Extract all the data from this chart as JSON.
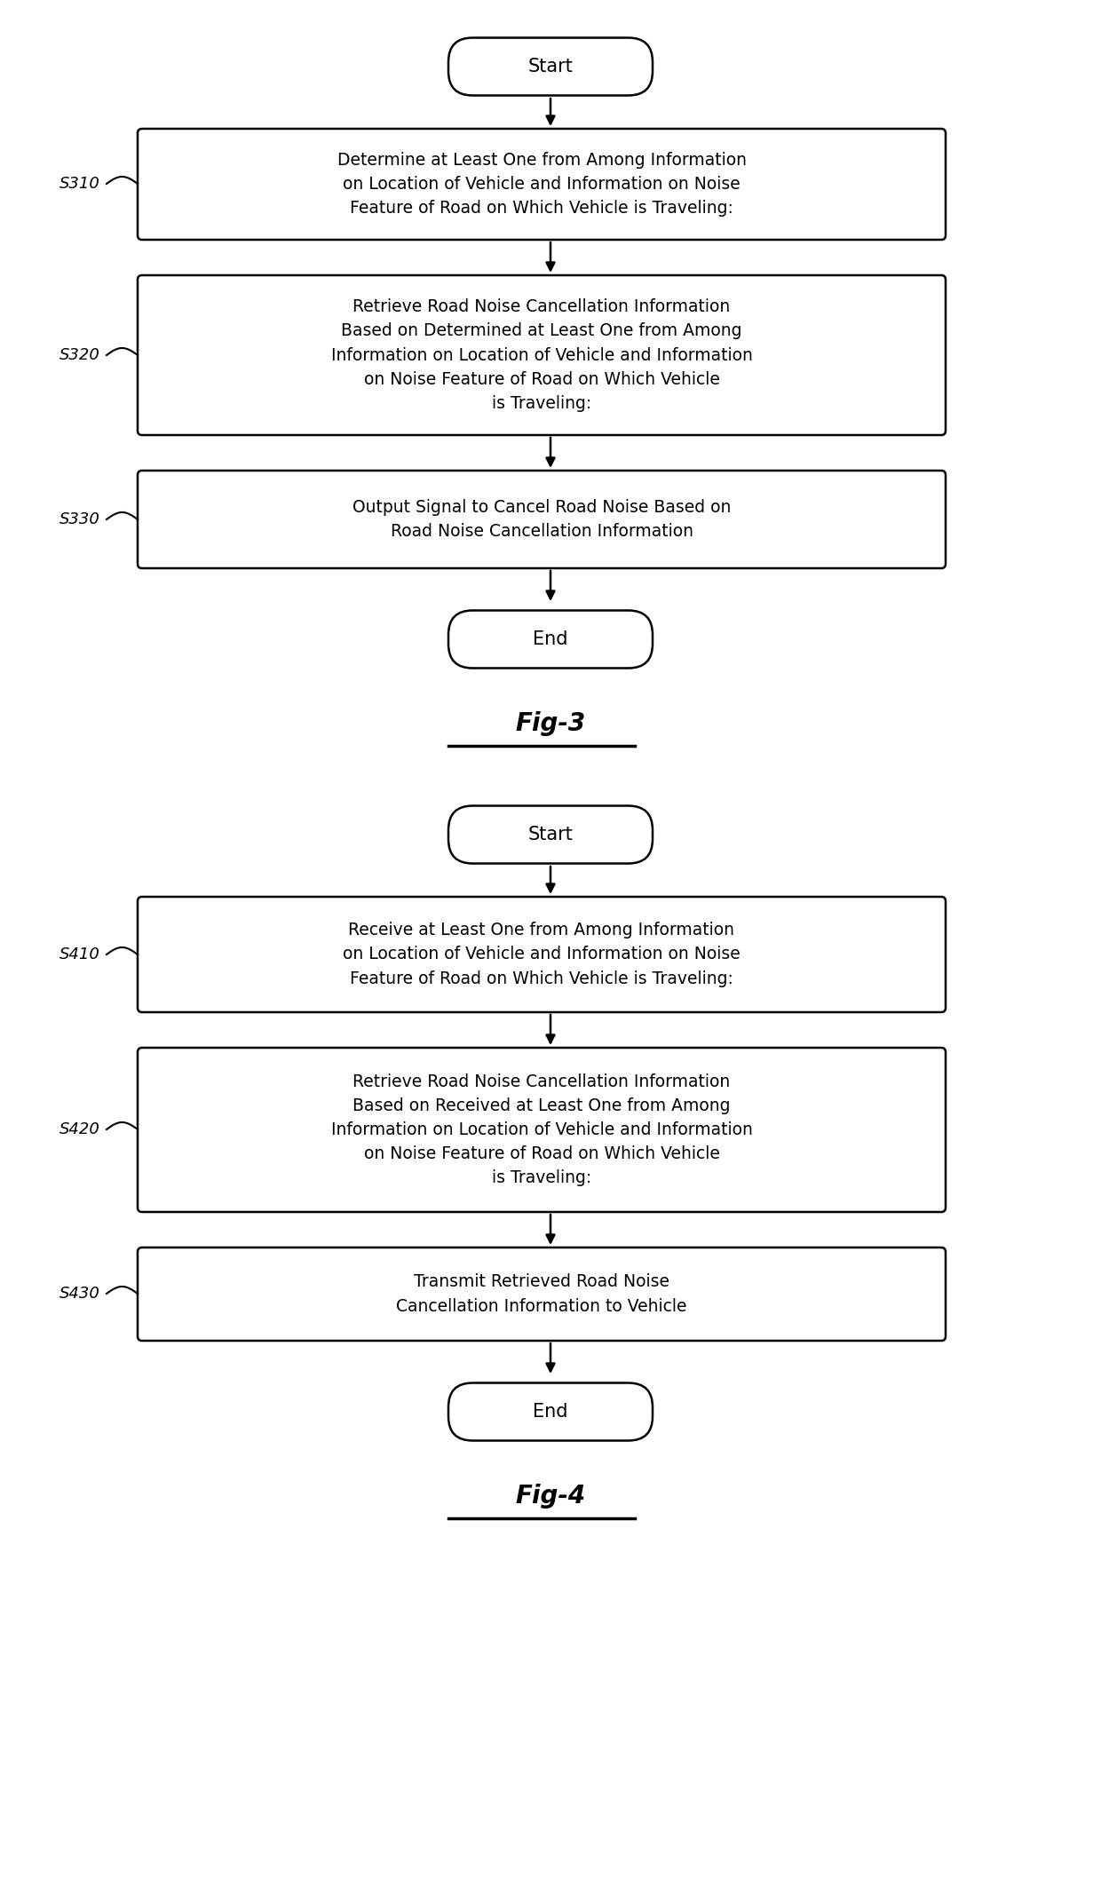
{
  "bg_color": "#ffffff",
  "fig3": {
    "title": "Fig-3",
    "start_label": "Start",
    "end_label": "End",
    "steps": [
      {
        "label": "S310",
        "text": "Determine at Least One from Among Information\non Location of Vehicle and Information on Noise\nFeature of Road on Which Vehicle is Traveling:"
      },
      {
        "label": "S320",
        "text": "Retrieve Road Noise Cancellation Information\nBased on Determined at Least One from Among\nInformation on Location of Vehicle and Information\non Noise Feature of Road on Which Vehicle\nis Traveling:"
      },
      {
        "label": "S330",
        "text": "Output Signal to Cancel Road Noise Based on\nRoad Noise Cancellation Information"
      }
    ]
  },
  "fig4": {
    "title": "Fig-4",
    "start_label": "Start",
    "end_label": "End",
    "steps": [
      {
        "label": "S410",
        "text": "Receive at Least One from Among Information\non Location of Vehicle and Information on Noise\nFeature of Road on Which Vehicle is Traveling:"
      },
      {
        "label": "S420",
        "text": "Retrieve Road Noise Cancellation Information\nBased on Received at Least One from Among\nInformation on Location of Vehicle and Information\non Noise Feature of Road on Which Vehicle\nis Traveling:"
      },
      {
        "label": "S430",
        "text": "Transmit Retrieved Road Noise\nCancellation Information to Vehicle"
      }
    ]
  },
  "box_color": "#ffffff",
  "box_edge_color": "#000000",
  "text_color": "#000000",
  "arrow_color": "#000000",
  "font_size": 13.5,
  "label_font_size": 13,
  "title_font_size": 20
}
